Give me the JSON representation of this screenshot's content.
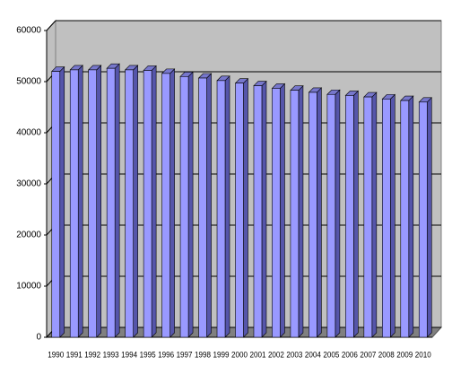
{
  "chart_data": {
    "type": "bar3d",
    "categories": [
      "1990",
      "1991",
      "1992",
      "1993",
      "1994",
      "1995",
      "1996",
      "1997",
      "1998",
      "1999",
      "2000",
      "2001",
      "2002",
      "2003",
      "2004",
      "2005",
      "2006",
      "2007",
      "2008",
      "2009",
      "2010"
    ],
    "values": [
      52000,
      52300,
      52300,
      52600,
      52300,
      52200,
      51600,
      51000,
      50700,
      50200,
      49700,
      49200,
      48700,
      48300,
      47900,
      47500,
      47300,
      47000,
      46600,
      46300,
      46000
    ],
    "color": "#9999ff",
    "ylim": [
      0,
      60000
    ],
    "yticks": [
      0,
      10000,
      20000,
      30000,
      40000,
      50000,
      60000
    ],
    "grid": true
  }
}
